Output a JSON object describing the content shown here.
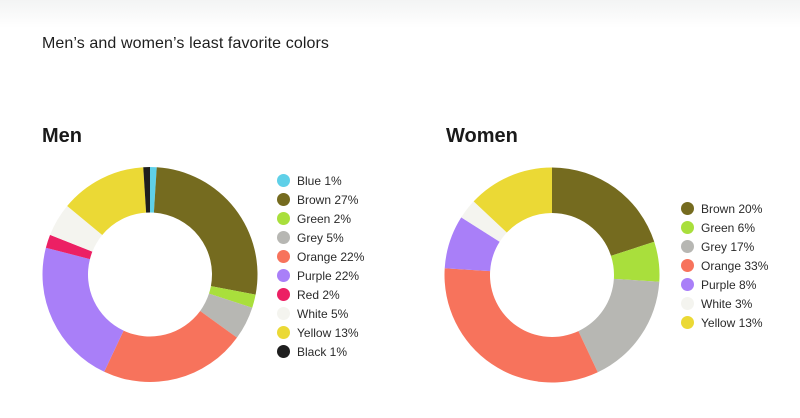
{
  "title": "Men’s and women’s least favorite colors",
  "chart_data": [
    {
      "type": "pie",
      "variant": "donut",
      "title": "Men",
      "start_angle": "12 o'clock, clockwise (Black ends at top)",
      "categories": [
        "Blue",
        "Brown",
        "Green",
        "Grey",
        "Orange",
        "Purple",
        "Red",
        "White",
        "Yellow",
        "Black"
      ],
      "values": [
        1,
        27,
        2,
        5,
        22,
        22,
        2,
        5,
        13,
        1
      ],
      "colors": [
        "#5fd0e8",
        "#756b1f",
        "#a9df3c",
        "#b7b7b3",
        "#f7735c",
        "#a97ff8",
        "#ec2064",
        "#f4f4ef",
        "#ebd935",
        "#1e1e1e"
      ],
      "labels": [
        "Blue 1%",
        "Brown 27%",
        "Green 2%",
        "Grey 5%",
        "Orange 22%",
        "Purple 22%",
        "Red 2%",
        "White 5%",
        "Yellow 13%",
        "Black 1%"
      ],
      "legend_position": "right"
    },
    {
      "type": "pie",
      "variant": "donut",
      "title": "Women",
      "start_angle": "12 o'clock, clockwise",
      "categories": [
        "Brown",
        "Green",
        "Grey",
        "Orange",
        "Purple",
        "White",
        "Yellow"
      ],
      "values": [
        20,
        6,
        17,
        33,
        8,
        3,
        13
      ],
      "colors": [
        "#756b1f",
        "#a9df3c",
        "#b7b7b3",
        "#f7735c",
        "#a97ff8",
        "#f4f4ef",
        "#ebd935"
      ],
      "labels": [
        "Brown 20%",
        "Green 6%",
        "Grey 17%",
        "Orange 33%",
        "Purple 8%",
        "White 3%",
        "Yellow 13%"
      ],
      "legend_position": "right"
    }
  ],
  "men": {
    "title": "Men",
    "legend": [
      {
        "label": "Blue 1%",
        "color": "#5fd0e8"
      },
      {
        "label": "Brown 27%",
        "color": "#756b1f"
      },
      {
        "label": "Green 2%",
        "color": "#a9df3c"
      },
      {
        "label": "Grey 5%",
        "color": "#b7b7b3"
      },
      {
        "label": "Orange 22%",
        "color": "#f7735c"
      },
      {
        "label": "Purple 22%",
        "color": "#a97ff8"
      },
      {
        "label": "Red 2%",
        "color": "#ec2064"
      },
      {
        "label": "White 5%",
        "color": "#f4f4ef"
      },
      {
        "label": "Yellow 13%",
        "color": "#ebd935"
      },
      {
        "label": "Black 1%",
        "color": "#1e1e1e"
      }
    ]
  },
  "women": {
    "title": "Women",
    "legend": [
      {
        "label": "Brown 20%",
        "color": "#756b1f"
      },
      {
        "label": "Green 6%",
        "color": "#a9df3c"
      },
      {
        "label": "Grey 17%",
        "color": "#b7b7b3"
      },
      {
        "label": "Orange 33%",
        "color": "#f7735c"
      },
      {
        "label": "Purple 8%",
        "color": "#a97ff8"
      },
      {
        "label": "White 3%",
        "color": "#f4f4ef"
      },
      {
        "label": "Yellow 13%",
        "color": "#ebd935"
      }
    ]
  }
}
